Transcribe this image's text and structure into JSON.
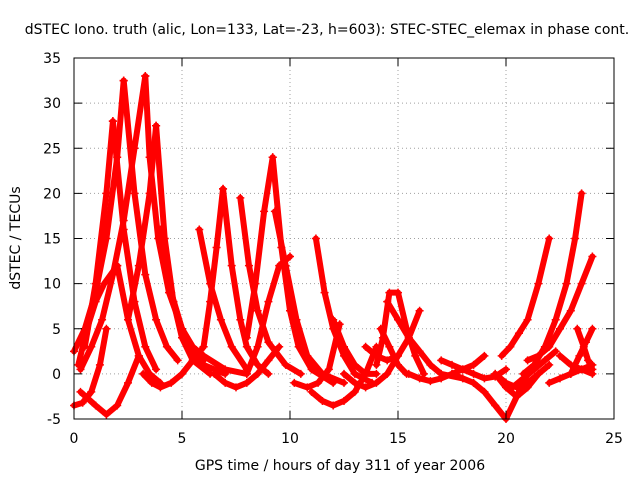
{
  "chart_data": {
    "type": "scatter",
    "title": "dSTEC Iono. truth (alic, Lon=133, Lat=-23, h=603): STEC-STEC_elemax in phase cont.",
    "xlabel": "GPS time / hours of day 311 of year 2006",
    "ylabel": "dSTEC  / TECUs",
    "xlim": [
      0,
      25
    ],
    "ylim": [
      -5,
      35
    ],
    "x_ticks": [
      "0",
      "5",
      "10",
      "15",
      "20",
      "25"
    ],
    "y_ticks": [
      "-5",
      "0",
      "5",
      "10",
      "15",
      "20",
      "25",
      "30",
      "35"
    ],
    "grid": true,
    "marker": "+",
    "color": "#ff0000",
    "series": [
      {
        "x": [
          0,
          0.5,
          1.0,
          1.5,
          2.0,
          2.3
        ],
        "y": [
          2.5,
          5,
          9,
          15,
          24,
          32.5
        ]
      },
      {
        "x": [
          2.3,
          2.8,
          3.3,
          3.8,
          4.3,
          4.8
        ],
        "y": [
          32.5,
          20,
          11,
          6,
          3,
          1.5
        ]
      },
      {
        "x": [
          0.3,
          0.8,
          1.3,
          1.8,
          2.3,
          2.8,
          3.3
        ],
        "y": [
          0.5,
          3,
          6,
          11,
          17,
          25,
          33
        ]
      },
      {
        "x": [
          3.3,
          3.5,
          3.9,
          4.4,
          5.0,
          5.6,
          6.0
        ],
        "y": [
          33,
          24,
          15,
          9,
          5,
          2.5,
          1.5
        ]
      },
      {
        "x": [
          0.5,
          1.0,
          1.5,
          1.8
        ],
        "y": [
          3,
          10,
          20,
          28
        ]
      },
      {
        "x": [
          1.8,
          2.3,
          2.8,
          3.3,
          3.8
        ],
        "y": [
          28,
          16,
          8,
          3,
          0.5
        ]
      },
      {
        "x": [
          0.2,
          0.6,
          1.0,
          1.4,
          2.0
        ],
        "y": [
          1,
          5,
          8,
          10,
          12
        ]
      },
      {
        "x": [
          2.0,
          2.5,
          3.0,
          3.5,
          4.0
        ],
        "y": [
          12,
          6,
          2,
          0,
          -1
        ]
      },
      {
        "x": [
          0,
          0.4,
          0.8,
          1.2,
          1.5
        ],
        "y": [
          -3.5,
          -3.2,
          -2,
          1,
          5
        ]
      },
      {
        "x": [
          0.3,
          1.0,
          1.5,
          2.0,
          2.5,
          3.0
        ],
        "y": [
          -2,
          -3.5,
          -4.5,
          -3.5,
          -1,
          2
        ]
      },
      {
        "x": [
          2.5,
          3.0,
          3.5,
          3.8
        ],
        "y": [
          6,
          12,
          20,
          27.5
        ]
      },
      {
        "x": [
          3.8,
          4.2,
          4.6,
          5.0,
          5.5,
          6.3
        ],
        "y": [
          27.5,
          15,
          8,
          4,
          1.5,
          0
        ]
      },
      {
        "x": [
          3.2,
          3.6,
          4.0,
          4.5,
          5.0,
          5.5,
          6.0
        ],
        "y": [
          0,
          -1,
          -1.5,
          -1,
          0,
          1.5,
          3
        ]
      },
      {
        "x": [
          4.0,
          4.5,
          5.0,
          5.5,
          6.0,
          7.0
        ],
        "y": [
          16,
          9,
          5,
          2.5,
          1,
          0
        ]
      },
      {
        "x": [
          4.6,
          5.0,
          5.5,
          6.0,
          7.0,
          8.0
        ],
        "y": [
          8,
          5,
          3,
          2,
          0.5,
          0
        ]
      },
      {
        "x": [
          5.8,
          6.3,
          6.8,
          7.3,
          8.0
        ],
        "y": [
          16,
          10,
          6,
          3,
          0.5
        ]
      },
      {
        "x": [
          6.0,
          6.3,
          6.6,
          6.9
        ],
        "y": [
          3,
          8,
          14,
          20.5
        ]
      },
      {
        "x": [
          6.9,
          7.3,
          7.7,
          8.0,
          8.5,
          9.0
        ],
        "y": [
          20.5,
          12,
          6,
          3,
          1,
          0
        ]
      },
      {
        "x": [
          6.5,
          7.0,
          7.5,
          8.0,
          8.5,
          9.0,
          9.5
        ],
        "y": [
          0,
          -1,
          -1.5,
          -1,
          0,
          1.5,
          3
        ]
      },
      {
        "x": [
          7.7,
          8.1,
          8.5,
          9.0,
          9.8,
          10.5
        ],
        "y": [
          19.5,
          12,
          7,
          3.5,
          1,
          0
        ]
      },
      {
        "x": [
          8.0,
          8.4,
          8.8,
          9.2
        ],
        "y": [
          4,
          10,
          18,
          24
        ]
      },
      {
        "x": [
          9.2,
          9.6,
          10.0,
          10.4,
          11.0,
          12.0
        ],
        "y": [
          24,
          14,
          7,
          3,
          0.5,
          -1
        ]
      },
      {
        "x": [
          8.0,
          8.5,
          9.0,
          9.5,
          10.0
        ],
        "y": [
          0,
          3,
          8,
          12,
          13
        ]
      },
      {
        "x": [
          9.3,
          9.8,
          10.3,
          10.8,
          11.5,
          12.5
        ],
        "y": [
          18,
          12,
          6,
          2,
          0,
          -1
        ]
      },
      {
        "x": [
          10.2,
          10.8,
          11.3,
          11.8,
          12.3
        ],
        "y": [
          -1,
          -1.5,
          -1,
          0.5,
          5.5
        ]
      },
      {
        "x": [
          11.2,
          11.6,
          12.0,
          12.5,
          13.0,
          13.8
        ],
        "y": [
          15,
          9,
          5,
          2,
          0,
          -1
        ]
      },
      {
        "x": [
          11.0,
          11.5,
          12.0,
          12.5,
          13.0,
          13.5,
          14.0
        ],
        "y": [
          -2,
          -3,
          -3.5,
          -3,
          -2,
          0,
          3
        ]
      },
      {
        "x": [
          12.0,
          12.5,
          13.0,
          13.5,
          14.0
        ],
        "y": [
          6,
          3,
          1,
          0,
          0
        ]
      },
      {
        "x": [
          12.5,
          13.0,
          13.5,
          14.0,
          14.5,
          15.0
        ],
        "y": [
          0,
          -1,
          -1.5,
          -1,
          0,
          2
        ]
      },
      {
        "x": [
          13.5,
          14.0,
          14.5,
          15.0,
          15.5,
          16.0
        ],
        "y": [
          3,
          2,
          1.5,
          2,
          4,
          7
        ]
      },
      {
        "x": [
          14.0,
          14.3,
          14.6,
          15.0,
          15.4,
          15.8,
          16.2
        ],
        "y": [
          1,
          4,
          9,
          9,
          5,
          2,
          0
        ]
      },
      {
        "x": [
          14.2,
          14.6,
          15.0,
          15.4
        ],
        "y": [
          5,
          3,
          1,
          0
        ]
      },
      {
        "x": [
          14.5,
          15.0,
          15.5,
          16.0,
          16.5,
          17.0,
          18.0
        ],
        "y": [
          8,
          6,
          4,
          2.5,
          1,
          0,
          -0.5
        ]
      },
      {
        "x": [
          15.5,
          16.0,
          16.5,
          17.0,
          17.5,
          18.0,
          18.5,
          19.0
        ],
        "y": [
          0,
          -0.5,
          -0.8,
          -0.5,
          0,
          0.5,
          1,
          2
        ]
      },
      {
        "x": [
          17.0,
          17.5,
          18.0,
          18.5,
          19.0,
          19.5,
          20.0
        ],
        "y": [
          1.5,
          1,
          0.5,
          0,
          -0.5,
          -0.3,
          0.5
        ]
      },
      {
        "x": [
          17.5,
          18.5,
          19.0,
          19.5,
          20.0,
          20.5,
          21.0
        ],
        "y": [
          0,
          -1,
          -2,
          -3.5,
          -5,
          -2.5,
          0
        ]
      },
      {
        "x": [
          19.5,
          20.0,
          20.5,
          21.0,
          21.5,
          22.0
        ],
        "y": [
          0,
          -1.5,
          -2.5,
          -1.5,
          0,
          1
        ]
      },
      {
        "x": [
          19.8,
          20.2,
          20.6,
          21.0,
          21.5,
          22.0
        ],
        "y": [
          2,
          3,
          4.5,
          6,
          10,
          15
        ]
      },
      {
        "x": [
          19.5,
          20.0,
          20.5,
          21.0,
          21.5
        ],
        "y": [
          0,
          -1,
          -1.5,
          -1,
          0
        ]
      },
      {
        "x": [
          20.8,
          21.3,
          21.8,
          22.3,
          22.8,
          23.2,
          23.5
        ],
        "y": [
          0,
          1,
          3,
          6,
          10,
          15,
          20
        ]
      },
      {
        "x": [
          21.0,
          21.5,
          22.0,
          22.5,
          23.0,
          23.5,
          24.0
        ],
        "y": [
          1.5,
          2,
          3,
          5,
          7,
          10,
          13
        ]
      },
      {
        "x": [
          22.0,
          22.5,
          23.0,
          23.5,
          24.0
        ],
        "y": [
          -1,
          -0.5,
          0,
          0.5,
          1
        ]
      },
      {
        "x": [
          22.5,
          23.0,
          23.5,
          24.0
        ],
        "y": [
          2,
          1,
          0.5,
          0
        ]
      },
      {
        "x": [
          23.0,
          23.4,
          23.7,
          24.0
        ],
        "y": [
          0,
          2,
          3.5,
          5
        ]
      },
      {
        "x": [
          23.3,
          23.6,
          23.8,
          24.0
        ],
        "y": [
          5,
          3,
          1.5,
          0.5
        ]
      },
      {
        "x": [
          20.3,
          20.8,
          21.3,
          21.8,
          22.3
        ],
        "y": [
          -1.5,
          -0.5,
          0.5,
          1.5,
          2.5
        ]
      }
    ]
  }
}
